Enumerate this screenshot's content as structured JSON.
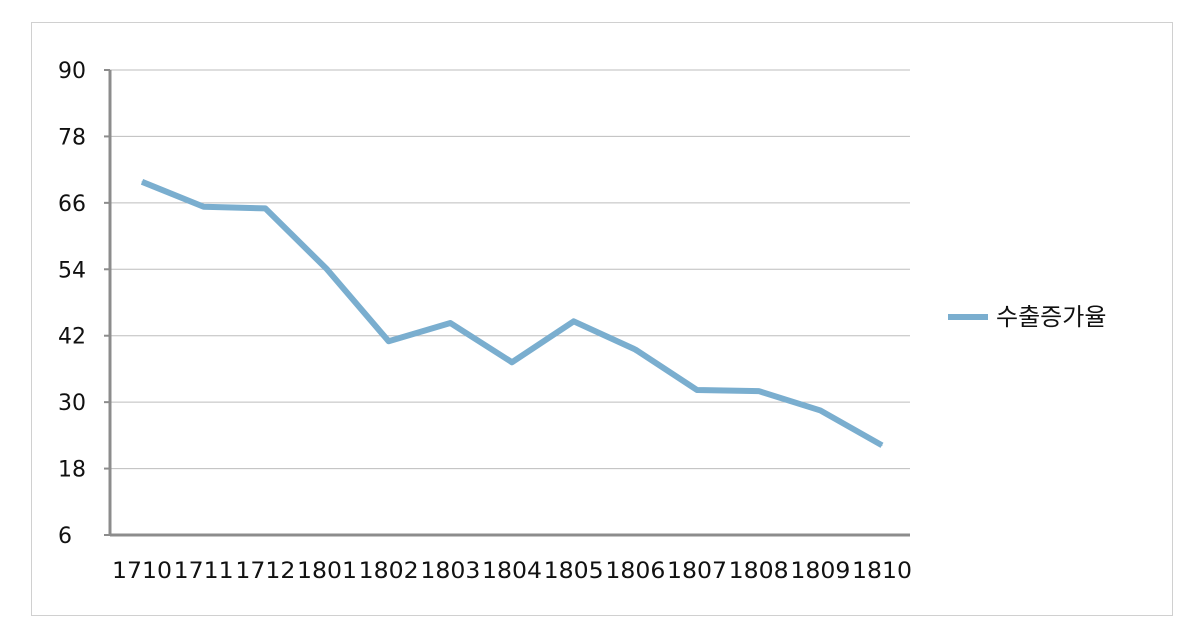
{
  "chart_data": {
    "type": "line",
    "title": "",
    "xlabel": "",
    "ylabel": "",
    "ylim": [
      6,
      90
    ],
    "yticks": [
      6,
      18,
      30,
      42,
      54,
      66,
      78,
      90
    ],
    "grid": true,
    "legend_position": "right",
    "categories": [
      "1710",
      "1711",
      "1712",
      "1801",
      "1802",
      "1803",
      "1804",
      "1805",
      "1806",
      "1807",
      "1808",
      "1809",
      "1810"
    ],
    "series": [
      {
        "name": "수출증가율",
        "color": "#7aaecf",
        "values": [
          69.8,
          65.3,
          65.0,
          54.0,
          41.0,
          44.3,
          37.2,
          44.6,
          39.5,
          32.2,
          32.0,
          28.5,
          22.2
        ]
      }
    ]
  }
}
